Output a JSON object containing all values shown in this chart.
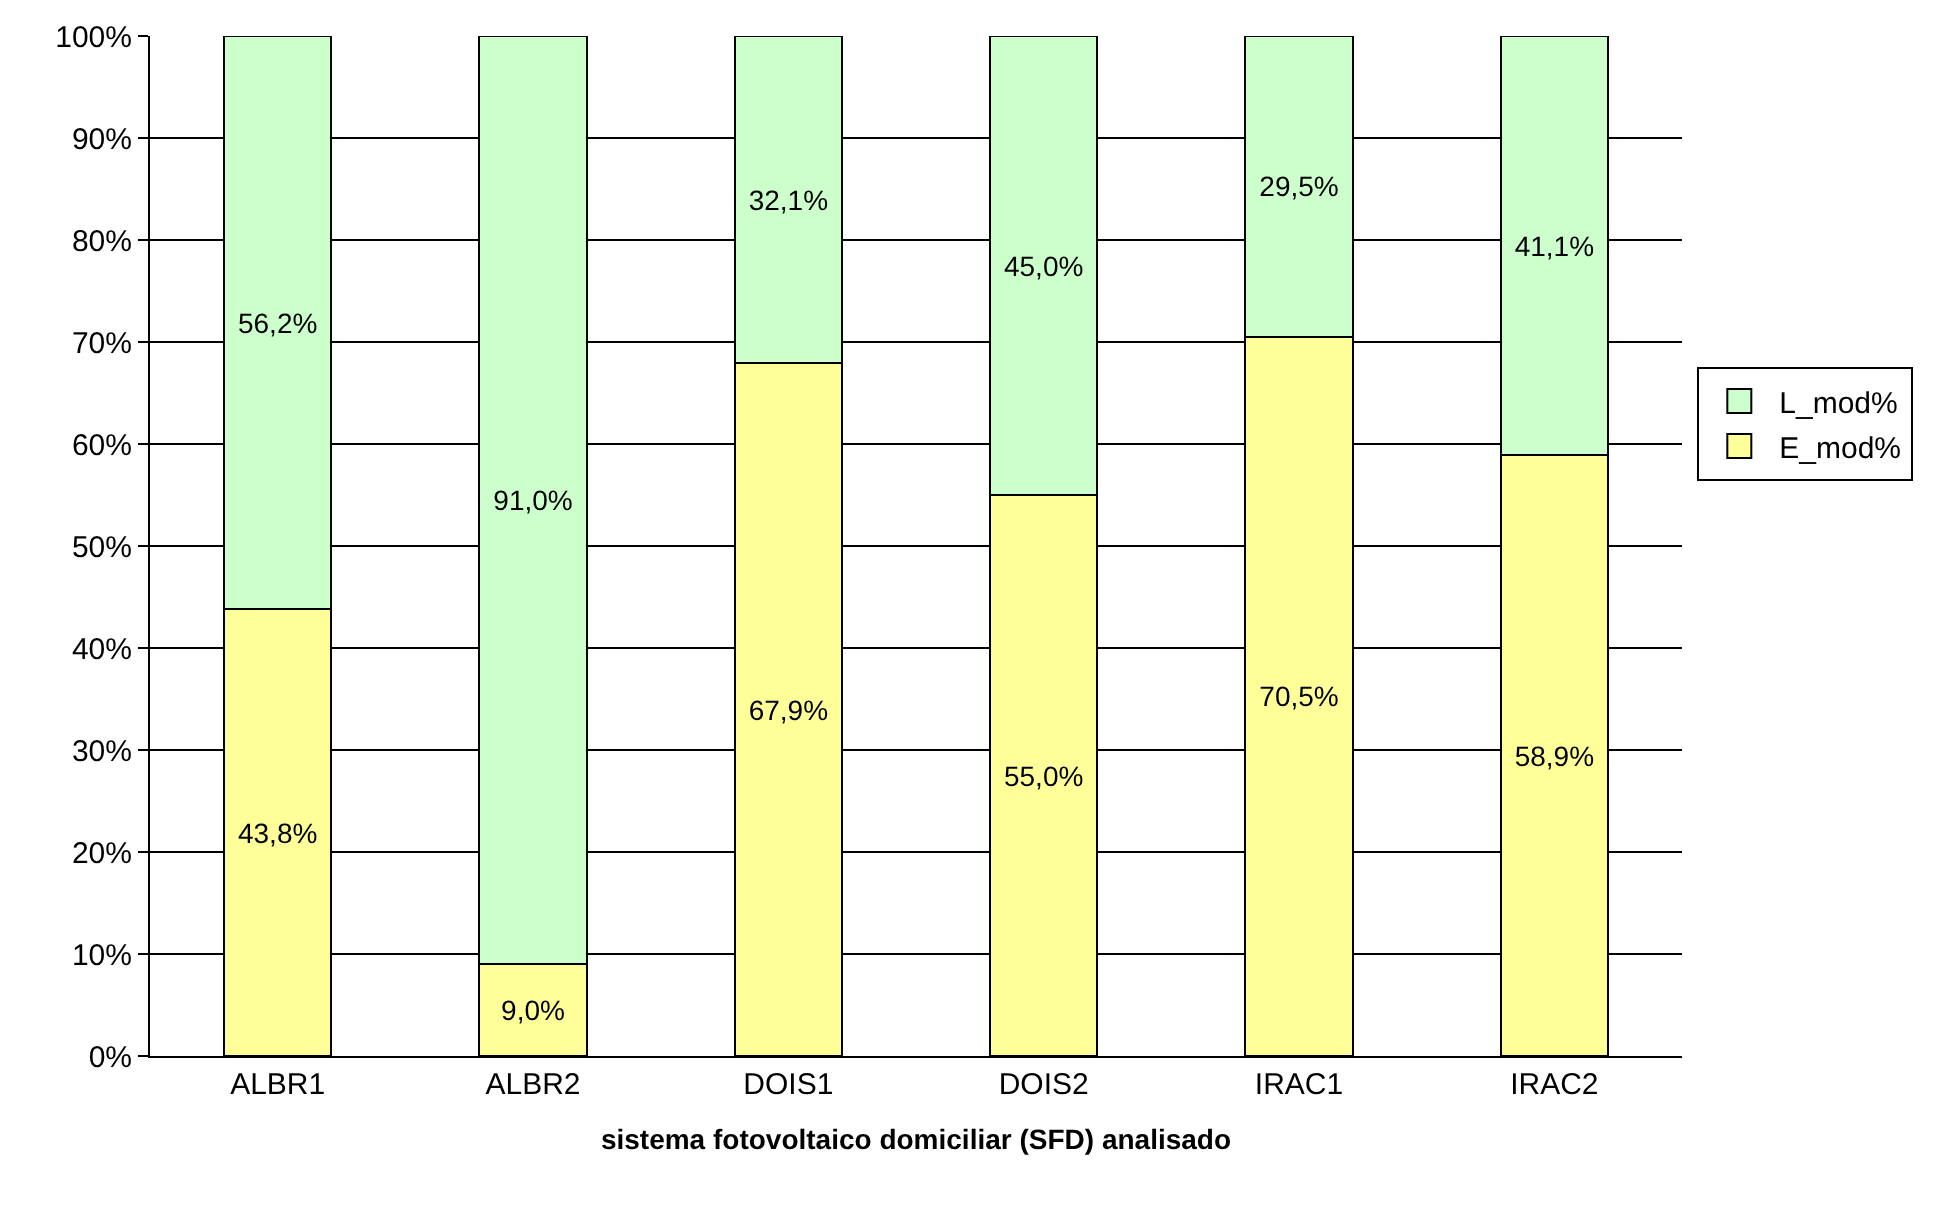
{
  "chart_data": {
    "type": "bar",
    "stacked": true,
    "xlabel": "sistema fotovoltaico domiciliar (SFD) analisado",
    "categories": [
      "ALBR1",
      "ALBR2",
      "DOIS1",
      "DOIS2",
      "IRAC1",
      "IRAC2"
    ],
    "series": [
      {
        "name": "E_mod%",
        "color": "#ffff99",
        "values": [
          43.8,
          9.0,
          67.9,
          55.0,
          70.5,
          58.9
        ],
        "value_labels": [
          "43,8%",
          "9,0%",
          "67,9%",
          "55,0%",
          "70,5%",
          "58,9%"
        ]
      },
      {
        "name": "L_mod%",
        "color": "#ccffcc",
        "values": [
          56.2,
          91.0,
          32.1,
          45.0,
          29.5,
          41.1
        ],
        "value_labels": [
          "56,2%",
          "91,0%",
          "32,1%",
          "45,0%",
          "29,5%",
          "41,1%"
        ]
      }
    ],
    "ylim": [
      0,
      100
    ],
    "yticks": [
      {
        "value": 0,
        "label": "0%"
      },
      {
        "value": 10,
        "label": "10%"
      },
      {
        "value": 20,
        "label": "20%"
      },
      {
        "value": 30,
        "label": "30%"
      },
      {
        "value": 40,
        "label": "40%"
      },
      {
        "value": 50,
        "label": "50%"
      },
      {
        "value": 60,
        "label": "60%"
      },
      {
        "value": 70,
        "label": "70%"
      },
      {
        "value": 80,
        "label": "80%"
      },
      {
        "value": 90,
        "label": "90%"
      },
      {
        "value": 100,
        "label": "100%"
      }
    ],
    "grid": "y",
    "legend": "right"
  }
}
